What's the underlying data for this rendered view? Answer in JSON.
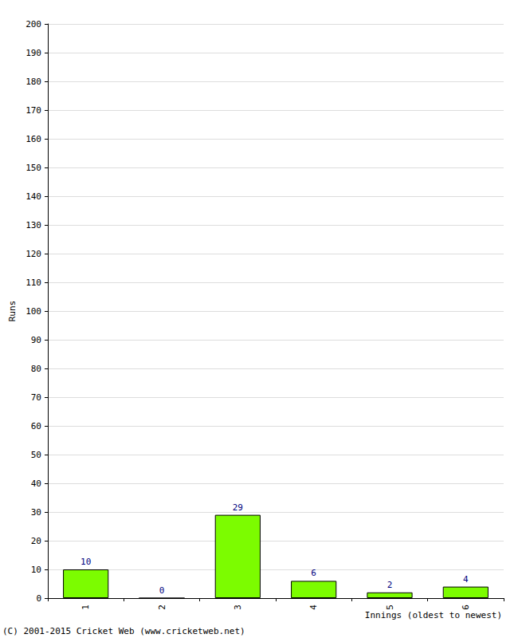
{
  "chart_data": {
    "type": "bar",
    "y_label": "Runs",
    "x_label": "Innings (oldest to newest)",
    "annotation": "(C) 2001-2015 Cricket Web (www.cricketweb.net)",
    "categories": [
      "1",
      "2",
      "3",
      "4",
      "5",
      "6"
    ],
    "values": [
      10,
      0,
      29,
      6,
      2,
      4
    ],
    "color": "#7cfc00",
    "ylim": [
      0,
      200
    ],
    "yticks": [
      0,
      10,
      20,
      30,
      40,
      50,
      60,
      70,
      80,
      90,
      100,
      110,
      120,
      130,
      140,
      150,
      160,
      170,
      180,
      190,
      200
    ],
    "grid": true,
    "data_labels": true
  }
}
